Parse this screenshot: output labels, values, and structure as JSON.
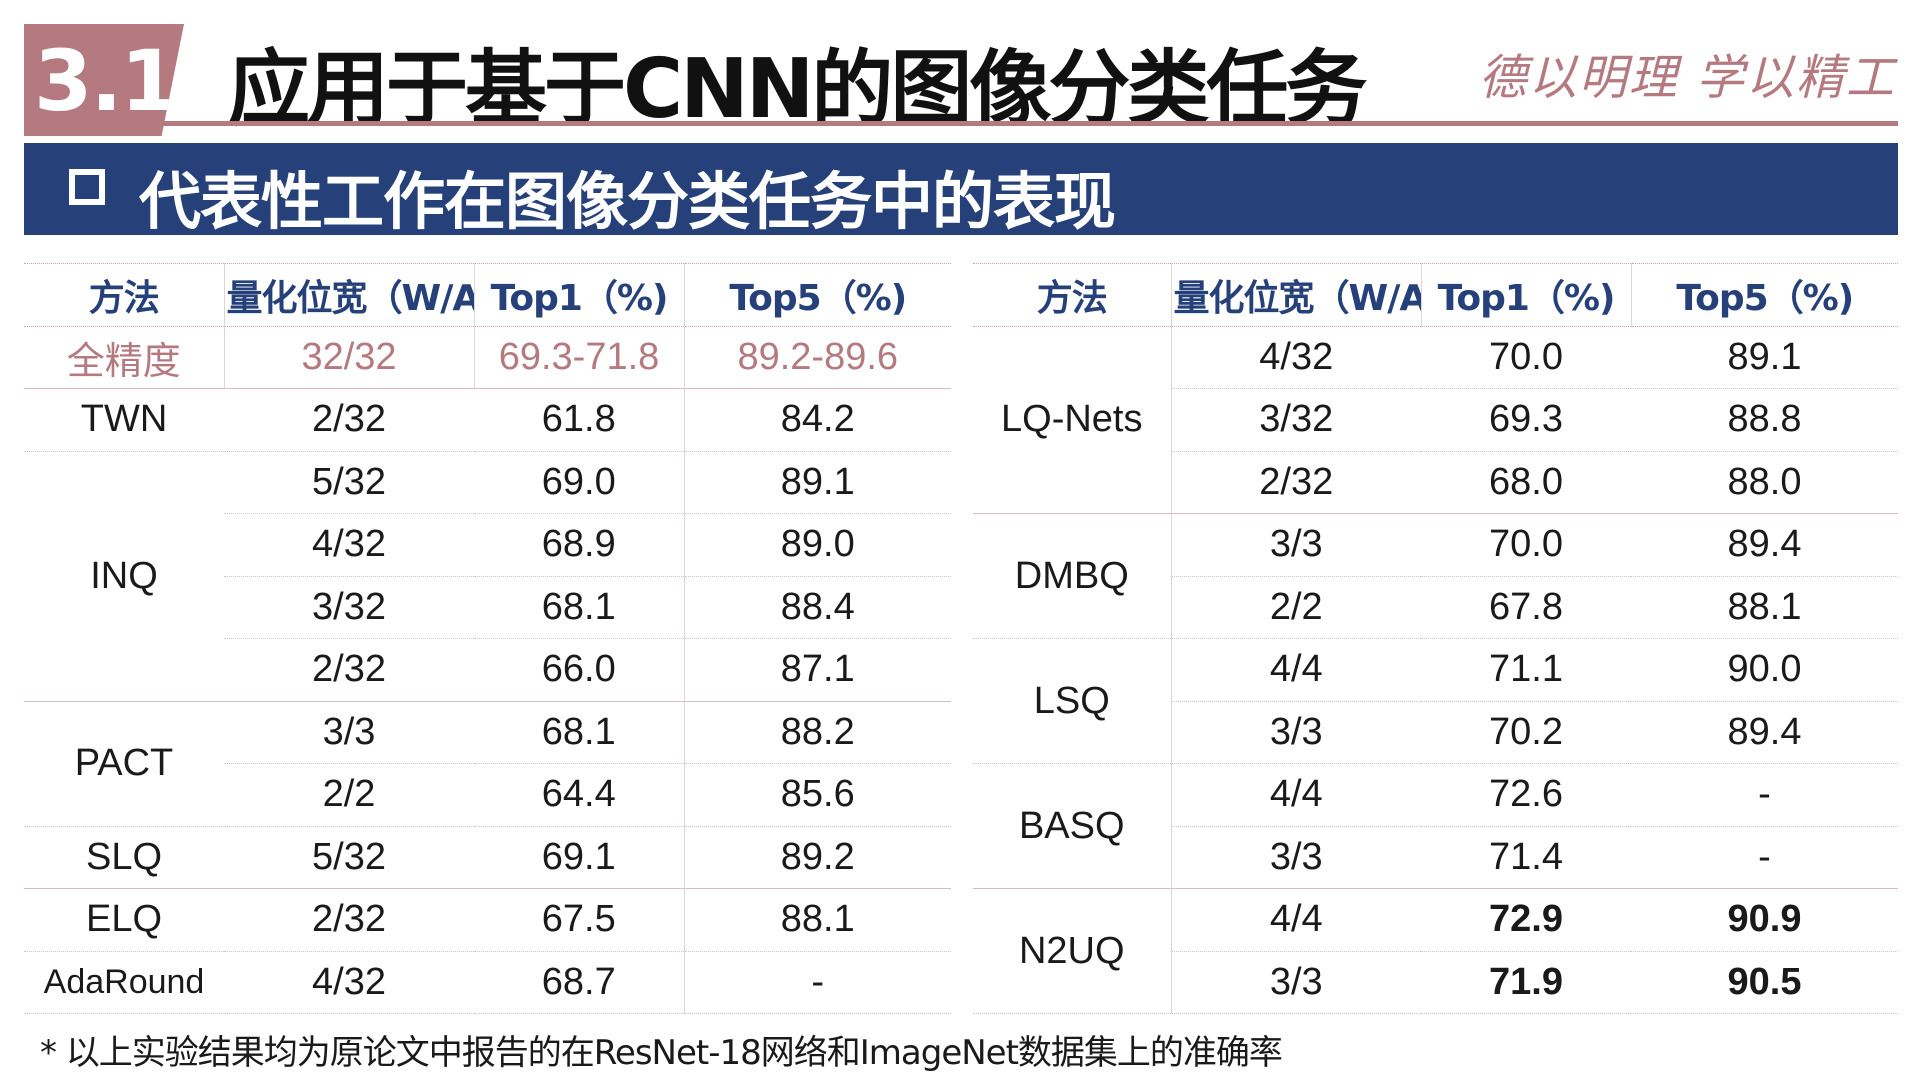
{
  "header": {
    "section_number": "3.1",
    "title": "应用于基于CNN的图像分类任务",
    "motto": "德以明理 学以精工"
  },
  "banner": {
    "text": "代表性工作在图像分类任务中的表现"
  },
  "table_left": {
    "headers": [
      "方法",
      "量化位宽（W/A)",
      "Top1（%)",
      "Top5（%)"
    ],
    "rows": [
      {
        "method": "全精度",
        "wa": "32/32",
        "top1": "69.3-71.8",
        "top5": "89.2-89.6"
      },
      {
        "method": "TWN",
        "wa": "2/32",
        "top1": "61.8",
        "top5": "84.2"
      },
      {
        "method": "INQ",
        "wa": "5/32",
        "top1": "69.0",
        "top5": "89.1"
      },
      {
        "method": "",
        "wa": "4/32",
        "top1": "68.9",
        "top5": "89.0"
      },
      {
        "method": "",
        "wa": "3/32",
        "top1": "68.1",
        "top5": "88.4"
      },
      {
        "method": "",
        "wa": "2/32",
        "top1": "66.0",
        "top5": "87.1"
      },
      {
        "method": "PACT",
        "wa": "3/3",
        "top1": "68.1",
        "top5": "88.2"
      },
      {
        "method": "",
        "wa": "2/2",
        "top1": "64.4",
        "top5": "85.6"
      },
      {
        "method": "SLQ",
        "wa": "5/32",
        "top1": "69.1",
        "top5": "89.2"
      },
      {
        "method": "ELQ",
        "wa": "2/32",
        "top1": "67.5",
        "top5": "88.1"
      },
      {
        "method": "AdaRound",
        "wa": "4/32",
        "top1": "68.7",
        "top5": "-"
      }
    ]
  },
  "table_right": {
    "headers": [
      "方法",
      "量化位宽（W/A)",
      "Top1（%)",
      "Top5（%)"
    ],
    "rows": [
      {
        "method": "LQ-Nets",
        "wa": "4/32",
        "top1": "70.0",
        "top5": "89.1"
      },
      {
        "method": "",
        "wa": "3/32",
        "top1": "69.3",
        "top5": "88.8"
      },
      {
        "method": "",
        "wa": "2/32",
        "top1": "68.0",
        "top5": "88.0"
      },
      {
        "method": "DMBQ",
        "wa": "3/3",
        "top1": "70.0",
        "top5": "89.4"
      },
      {
        "method": "",
        "wa": "2/2",
        "top1": "67.8",
        "top5": "88.1"
      },
      {
        "method": "LSQ",
        "wa": "4/4",
        "top1": "71.1",
        "top5": "90.0"
      },
      {
        "method": "",
        "wa": "3/3",
        "top1": "70.2",
        "top5": "89.4"
      },
      {
        "method": "BASQ",
        "wa": "4/4",
        "top1": "72.6",
        "top5": "-"
      },
      {
        "method": "",
        "wa": "3/3",
        "top1": "71.4",
        "top5": "-"
      },
      {
        "method": "N2UQ",
        "wa": "4/4",
        "top1": "72.9",
        "top5": "90.9"
      },
      {
        "method": "",
        "wa": "3/3",
        "top1": "71.9",
        "top5": "90.5"
      }
    ]
  },
  "footnote": "* 以上实验结果均为原论文中报告的在ResNet-18网络和ImageNet数据集上的准确率",
  "colors": {
    "accent": "#b57a80",
    "banner": "#26417a",
    "header_text": "#26417a"
  }
}
